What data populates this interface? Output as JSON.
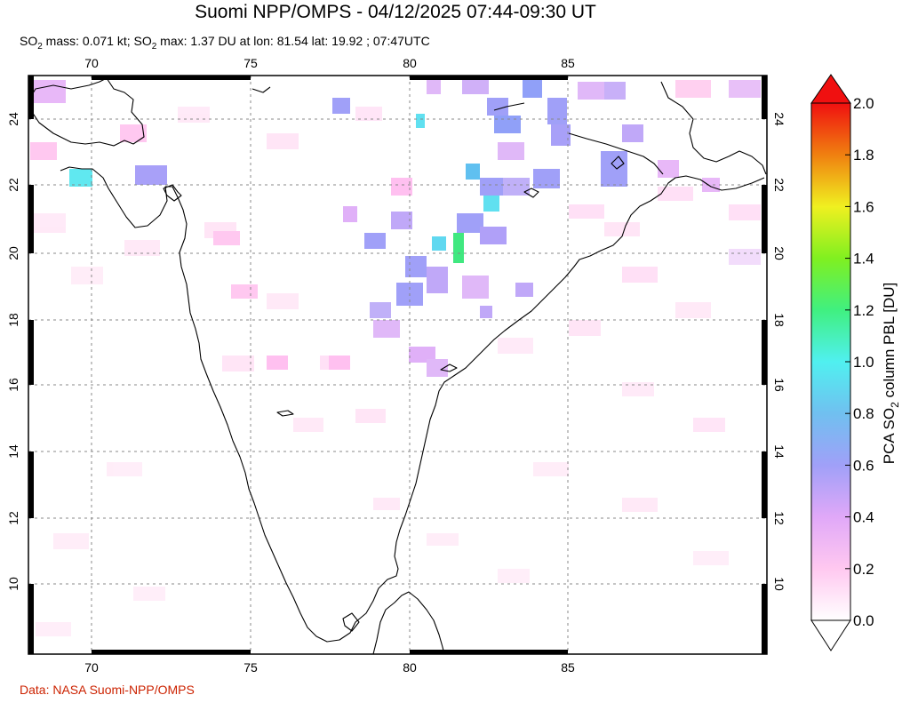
{
  "title": "Suomi NPP/OMPS - 04/12/2025 07:44-09:30 UT",
  "subtitle": {
    "part1": "SO",
    "sub1": "2",
    "part2": " mass: 0.071 kt; SO",
    "sub2": "2",
    "part3": " max: 1.37 DU at lon: 81.54 lat: 19.92 ; 07:47UTC"
  },
  "credit": "Data: NASA Suomi-NPP/OMPS",
  "map": {
    "lon_range": [
      68,
      91.2
    ],
    "lat_range": [
      7.5,
      25.2
    ],
    "lon_ticks": [
      "70",
      "75",
      "80",
      "85"
    ],
    "lat_ticks": [
      "10",
      "12",
      "14",
      "16",
      "18",
      "20",
      "22",
      "24"
    ],
    "grid": true,
    "colors": {
      "coast": "#000000",
      "grid": "#888888"
    }
  },
  "colorbar": {
    "label_main": "PCA SO",
    "label_sub": "2",
    "label_tail": " column PBL [DU]",
    "ticks": [
      "0.0",
      "0.2",
      "0.4",
      "0.6",
      "0.8",
      "1.0",
      "1.2",
      "1.4",
      "1.6",
      "1.8",
      "2.0"
    ],
    "range": [
      0,
      2.0
    ],
    "colors": [
      "#ffffff",
      "#ffc8f0",
      "#e0a8f8",
      "#a0a0f8",
      "#70c0f0",
      "#50f0f0",
      "#40f080",
      "#80f020",
      "#f0f020",
      "#f08010",
      "#f01010"
    ]
  }
}
